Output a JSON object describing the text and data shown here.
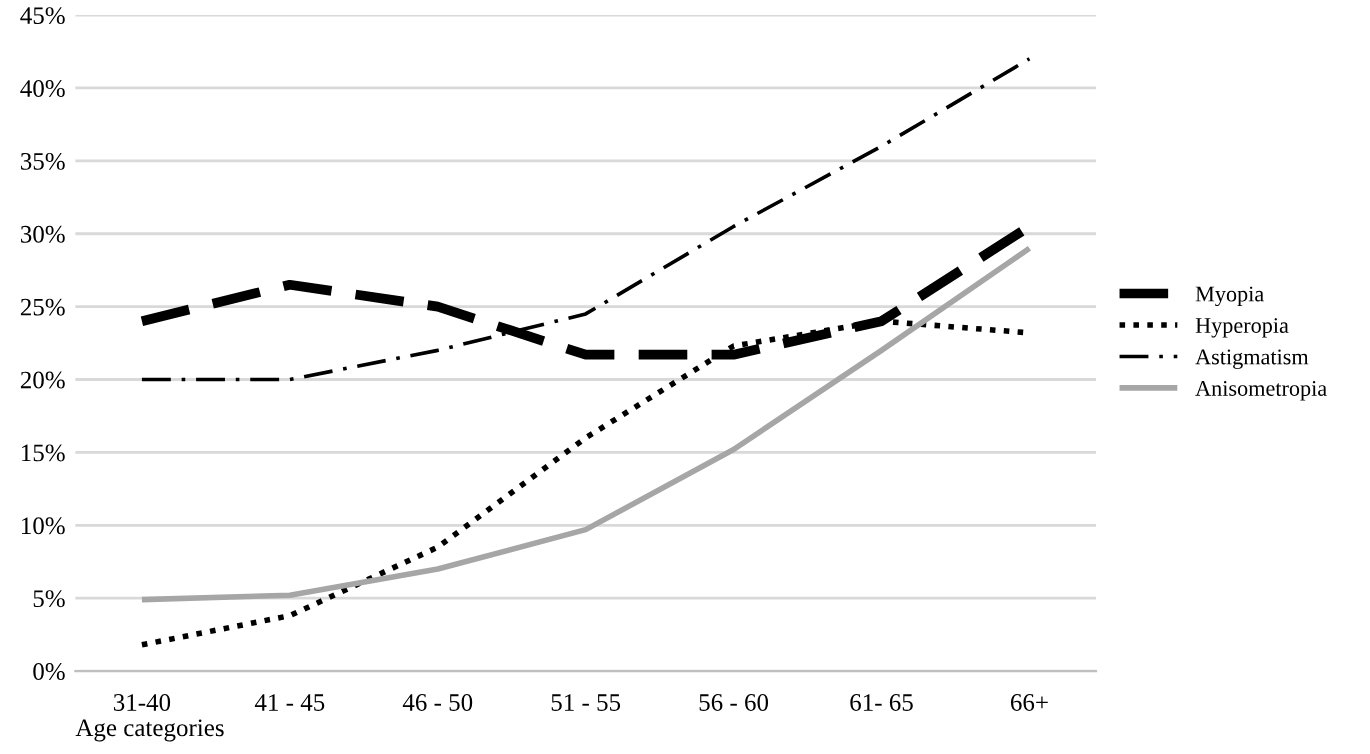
{
  "chart_data": {
    "type": "line",
    "xlabel": "Age categories",
    "categories": [
      "31-40",
      "41 - 45",
      "46 - 50",
      "51 - 55",
      "56 - 60",
      "61- 65",
      "66+"
    ],
    "series": [
      {
        "name": "Myopia",
        "color": "#000000",
        "line_style": "dashed",
        "values": [
          24,
          26.5,
          25,
          21.7,
          21.7,
          24,
          30.5
        ]
      },
      {
        "name": "Hyperopia",
        "color": "#000000",
        "line_style": "dotted",
        "values": [
          1.8,
          3.8,
          8.5,
          16,
          22.3,
          24,
          23.2
        ]
      },
      {
        "name": "Astigmatism",
        "color": "#000000",
        "line_style": "dashdot",
        "values": [
          20,
          20,
          22,
          24.5,
          30.5,
          36,
          42
        ]
      },
      {
        "name": "Anisometropia",
        "color": "#a6a6a6",
        "line_style": "solid",
        "values": [
          4.9,
          5.2,
          7,
          9.7,
          15.2,
          22,
          29
        ]
      }
    ],
    "ylim": [
      0,
      45
    ],
    "yticks": [
      {
        "value": 0,
        "label": "0%"
      },
      {
        "value": 5,
        "label": "5%"
      },
      {
        "value": 10,
        "label": "10%"
      },
      {
        "value": 15,
        "label": "15%"
      },
      {
        "value": 20,
        "label": "20%"
      },
      {
        "value": 25,
        "label": "25%"
      },
      {
        "value": 30,
        "label": "30%"
      },
      {
        "value": 35,
        "label": "35%"
      },
      {
        "value": 40,
        "label": "40%"
      },
      {
        "value": 45,
        "label": "45%"
      }
    ],
    "grid": "y",
    "legend": "right",
    "marker": "none"
  }
}
